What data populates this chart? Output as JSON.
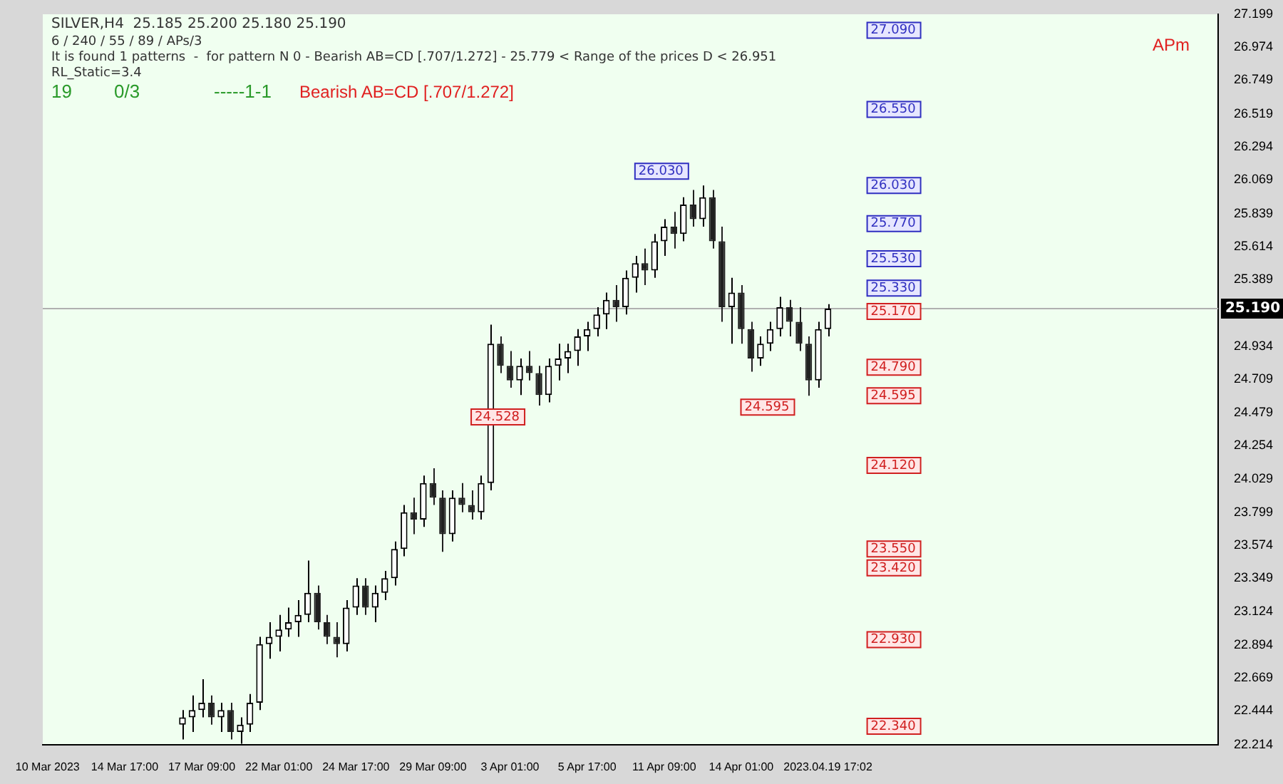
{
  "chart_data": {
    "type": "candlestick",
    "title": "SILVER,H4  25.185 25.200 25.180 25.190",
    "categories": [
      "10 Mar 2023",
      null,
      null,
      null,
      null,
      null,
      null,
      null,
      "14 Mar 17:00",
      null,
      null,
      null,
      null,
      null,
      null,
      null,
      "17 Mar 09:00",
      null,
      null,
      null,
      null,
      null,
      null,
      null,
      "22 Mar 01:00",
      null,
      null,
      null,
      null,
      null,
      null,
      null,
      "24 Mar 17:00",
      null,
      null,
      null,
      null,
      null,
      null,
      null,
      "29 Mar 09:00",
      null,
      null,
      null,
      null,
      null,
      null,
      null,
      "3 Apr 01:00",
      null,
      null,
      null,
      null,
      null,
      null,
      null,
      "5 Apr 17:00",
      null,
      null,
      null,
      null,
      null,
      null,
      null,
      "11 Apr 09:00",
      null,
      null,
      null,
      null,
      null,
      null,
      null,
      "14 Apr 01:00",
      null,
      null,
      null,
      null,
      null,
      null,
      null,
      null,
      "2023.04.19 17:02",
      null,
      null,
      null,
      null,
      null,
      null,
      null,
      null,
      null,
      null,
      null,
      null,
      null,
      null,
      null,
      null,
      null,
      null,
      null,
      null,
      null,
      null,
      null,
      null,
      null,
      null,
      null,
      null,
      null,
      null,
      null,
      null,
      null,
      null,
      null,
      null,
      null,
      null,
      null,
      null
    ],
    "ohlc": [
      null,
      null,
      null,
      null,
      null,
      null,
      null,
      null,
      null,
      null,
      null,
      null,
      null,
      null,
      [
        22.35,
        22.45,
        22.25,
        22.4
      ],
      [
        22.4,
        22.55,
        22.3,
        22.45
      ],
      [
        22.45,
        22.66,
        22.4,
        22.5
      ],
      [
        22.5,
        22.55,
        22.35,
        22.4
      ],
      [
        22.4,
        22.5,
        22.3,
        22.45
      ],
      [
        22.45,
        22.5,
        22.25,
        22.3
      ],
      [
        22.3,
        22.4,
        22.22,
        22.35
      ],
      [
        22.35,
        22.56,
        22.3,
        22.5
      ],
      [
        22.5,
        22.95,
        22.45,
        22.9
      ],
      [
        22.9,
        23.05,
        22.8,
        22.95
      ],
      [
        22.95,
        23.1,
        22.85,
        23.0
      ],
      [
        23.0,
        23.15,
        22.95,
        23.05
      ],
      [
        23.05,
        23.2,
        22.95,
        23.1
      ],
      [
        23.1,
        23.47,
        23.05,
        23.25
      ],
      [
        23.25,
        23.3,
        23.0,
        23.05
      ],
      [
        23.05,
        23.1,
        22.9,
        22.95
      ],
      [
        22.95,
        23.05,
        22.81,
        22.9
      ],
      [
        22.9,
        23.2,
        22.85,
        23.15
      ],
      [
        23.15,
        23.35,
        23.1,
        23.3
      ],
      [
        23.3,
        23.35,
        23.1,
        23.15
      ],
      [
        23.15,
        23.3,
        23.05,
        23.25
      ],
      [
        23.25,
        23.4,
        23.2,
        23.35
      ],
      [
        23.35,
        23.6,
        23.3,
        23.55
      ],
      [
        23.55,
        23.85,
        23.5,
        23.8
      ],
      [
        23.8,
        23.9,
        23.65,
        23.75
      ],
      [
        23.75,
        24.05,
        23.7,
        24.0
      ],
      [
        24.0,
        24.1,
        23.85,
        23.9
      ],
      [
        23.9,
        23.95,
        23.53,
        23.65
      ],
      [
        23.65,
        23.95,
        23.6,
        23.9
      ],
      [
        23.9,
        24.0,
        23.8,
        23.85
      ],
      [
        23.85,
        23.95,
        23.75,
        23.8
      ],
      [
        23.8,
        24.05,
        23.75,
        24.0
      ],
      [
        24.0,
        25.08,
        23.95,
        24.95
      ],
      [
        24.95,
        25.0,
        24.75,
        24.8
      ],
      [
        24.8,
        24.9,
        24.65,
        24.7
      ],
      [
        24.7,
        24.85,
        24.6,
        24.8
      ],
      [
        24.8,
        24.9,
        24.7,
        24.75
      ],
      [
        24.75,
        24.8,
        24.528,
        24.6
      ],
      [
        24.6,
        24.85,
        24.55,
        24.8
      ],
      [
        24.8,
        24.95,
        24.7,
        24.85
      ],
      [
        24.85,
        24.95,
        24.75,
        24.9
      ],
      [
        24.9,
        25.05,
        24.8,
        25.0
      ],
      [
        25.0,
        25.1,
        24.9,
        25.05
      ],
      [
        25.05,
        25.2,
        25.0,
        25.15
      ],
      [
        25.15,
        25.3,
        25.05,
        25.25
      ],
      [
        25.25,
        25.35,
        25.1,
        25.2
      ],
      [
        25.2,
        25.45,
        25.15,
        25.4
      ],
      [
        25.4,
        25.55,
        25.3,
        25.5
      ],
      [
        25.5,
        25.6,
        25.35,
        25.45
      ],
      [
        25.45,
        25.7,
        25.4,
        25.65
      ],
      [
        25.65,
        25.8,
        25.55,
        25.75
      ],
      [
        25.75,
        25.85,
        25.6,
        25.7
      ],
      [
        25.7,
        25.95,
        25.65,
        25.9
      ],
      [
        25.9,
        26.0,
        25.75,
        25.8
      ],
      [
        25.8,
        26.03,
        25.75,
        25.95
      ],
      [
        25.95,
        26.0,
        25.6,
        25.65
      ],
      [
        25.65,
        25.75,
        25.1,
        25.2
      ],
      [
        25.2,
        25.4,
        24.95,
        25.3
      ],
      [
        25.3,
        25.35,
        24.95,
        25.05
      ],
      [
        25.05,
        25.1,
        24.76,
        24.85
      ],
      [
        24.85,
        25.0,
        24.8,
        24.95
      ],
      [
        24.95,
        25.1,
        24.9,
        25.05
      ],
      [
        25.05,
        25.27,
        25.0,
        25.2
      ],
      [
        25.2,
        25.25,
        25.0,
        25.1
      ],
      [
        25.1,
        25.2,
        24.9,
        24.95
      ],
      [
        24.95,
        25.0,
        24.595,
        24.7
      ],
      [
        24.7,
        25.1,
        24.65,
        25.05
      ],
      [
        25.05,
        25.22,
        25.0,
        25.19
      ],
      null,
      null,
      null,
      null,
      null,
      null,
      null,
      null,
      null,
      null,
      null,
      null,
      null,
      null,
      null,
      null,
      null,
      null,
      null,
      null,
      null,
      null,
      null,
      null,
      null,
      null,
      null,
      null,
      null,
      null,
      null,
      null,
      null,
      null,
      null,
      null,
      null,
      null,
      null,
      null
    ],
    "colors": [
      null,
      null,
      null,
      null,
      null,
      null,
      null,
      null,
      null,
      null,
      null,
      null,
      null,
      null,
      "#000000",
      "#000000",
      "#000000",
      "#202020",
      "#000000",
      "#202020",
      "#000000",
      "#000000",
      "#000000",
      "#000000",
      "#000000",
      "#000000",
      "#000000",
      "#000000",
      "#202020",
      "#202020",
      "#202020",
      "#000000",
      "#000000",
      "#202020",
      "#000000",
      "#000000",
      "#000000",
      "#000000",
      "#202020",
      "#000000",
      "#202020",
      "#202020",
      "#000000",
      "#202020",
      "#202020",
      "#000000",
      "#000000",
      "#202020",
      "#202020",
      "#000000",
      "#202020",
      "#202020",
      "#000000",
      "#000000",
      "#000000",
      "#000000",
      "#000000",
      "#000000",
      "#000000",
      "#202020",
      "#000000",
      "#000000",
      "#202020",
      "#000000",
      "#000000",
      "#202020",
      "#000000",
      "#202020",
      "#000000",
      "#202020",
      "#202020",
      "#000000",
      "#202020",
      "#202020",
      "#000000",
      "#000000",
      "#000000",
      "#202020",
      "#202020",
      "#202020",
      "#000000",
      "#000000",
      null,
      null,
      null,
      null,
      null,
      null,
      null,
      null,
      null,
      null,
      null,
      null,
      null,
      null,
      null,
      null,
      null,
      null,
      null,
      null,
      null,
      null,
      null,
      null,
      null,
      null,
      null,
      null,
      null,
      null,
      null,
      null,
      null,
      null,
      null,
      null,
      null,
      null,
      null,
      null
    ],
    "ylim": [
      22.214,
      27.199
    ],
    "yticks": [
      22.214,
      22.444,
      22.669,
      22.894,
      23.124,
      23.349,
      23.574,
      23.799,
      24.029,
      24.254,
      24.479,
      24.709,
      24.934,
      25.389,
      25.614,
      25.839,
      26.069,
      26.294,
      26.519,
      26.749,
      26.974,
      27.199
    ],
    "ref_lines": [
      {
        "axis": "y",
        "value": 25.19,
        "label": "25.190",
        "color": "#b0b0b0",
        "line_style": "solid"
      }
    ],
    "annotations": [
      "6 / 240 / 55 / 89 / APs/3",
      "It is found 1 patterns  -  for pattern N 0 - Bearish AB=CD [.707/1.272] - 25.779 < Range of the prices D < 26.951",
      "RL_Static=3.4",
      "19",
      "0/3",
      "-----1-1",
      "Bearish AB=CD [.707/1.272]",
      "APm",
      "24.528",
      "26.030",
      "24.595",
      "27.090",
      "26.550",
      "26.030",
      "25.770",
      "25.530",
      "25.330",
      "25.170",
      "24.790",
      "24.595",
      "24.120",
      "23.550",
      "23.420",
      "22.930",
      "22.340"
    ],
    "grid": false,
    "legend": false
  }
}
